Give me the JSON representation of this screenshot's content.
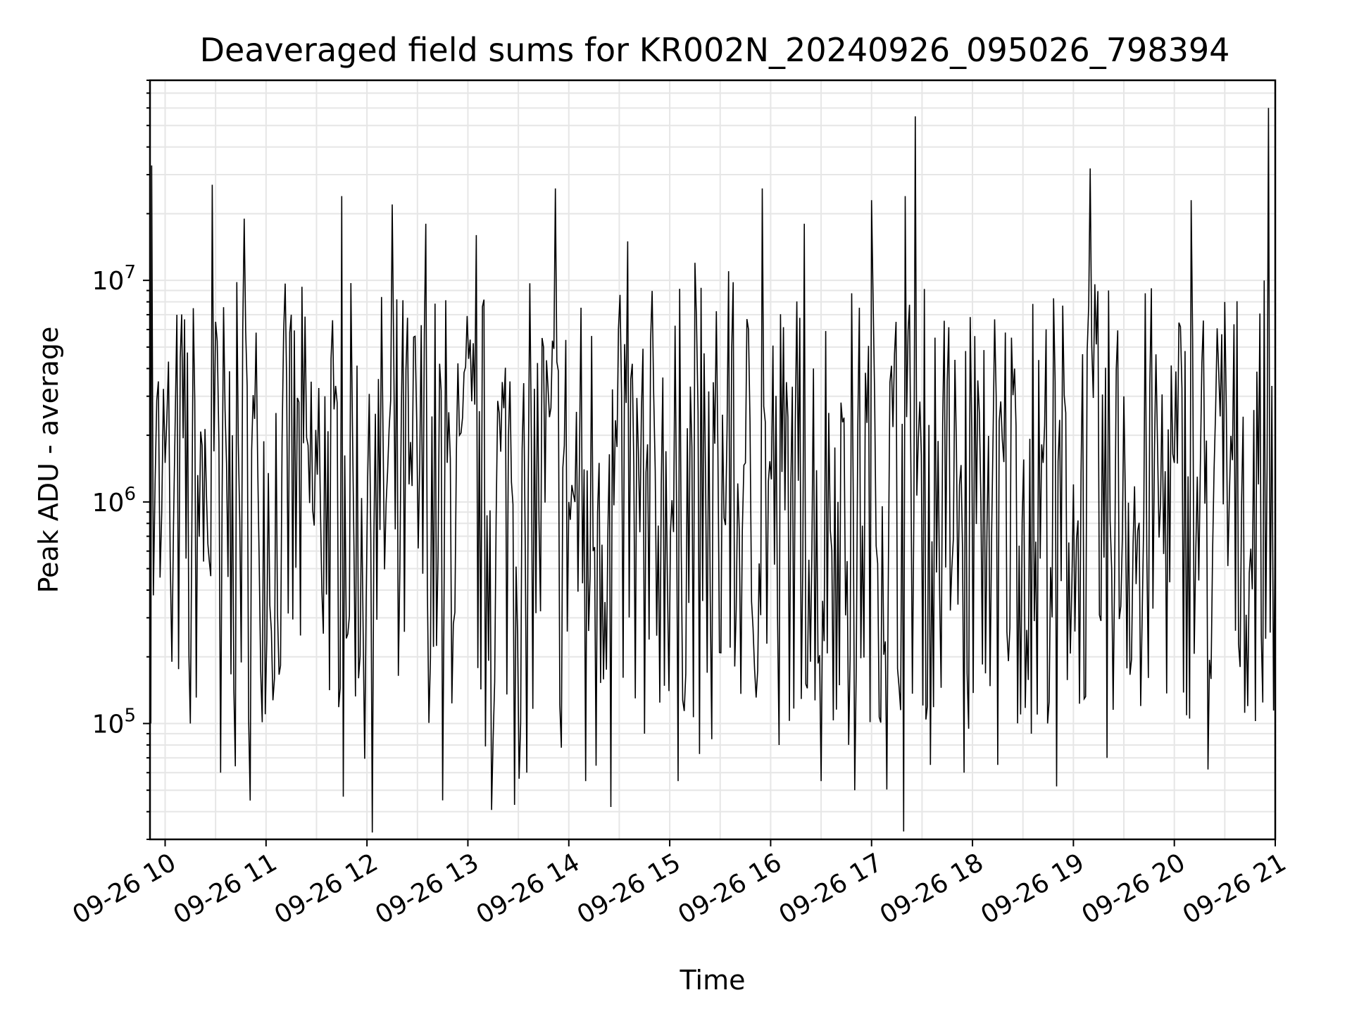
{
  "chart_data": {
    "type": "line",
    "title": "Deaveraged field sums for KR002N_20240926_095026_798394",
    "xlabel": "Time",
    "ylabel": "Peak ADU - average",
    "x_range": [
      "2024-09-26 09:51",
      "2024-09-26 21:00"
    ],
    "y_scale": "log",
    "ylim": [
      30000,
      80000000
    ],
    "grid": true,
    "line_color": "#000000",
    "grid_color": "#e6e6e6",
    "x_ticks": [
      {
        "t": "2024-09-26 10:00",
        "label": "09-26 10"
      },
      {
        "t": "2024-09-26 11:00",
        "label": "09-26 11"
      },
      {
        "t": "2024-09-26 12:00",
        "label": "09-26 12"
      },
      {
        "t": "2024-09-26 13:00",
        "label": "09-26 13"
      },
      {
        "t": "2024-09-26 14:00",
        "label": "09-26 14"
      },
      {
        "t": "2024-09-26 15:00",
        "label": "09-26 15"
      },
      {
        "t": "2024-09-26 16:00",
        "label": "09-26 16"
      },
      {
        "t": "2024-09-26 17:00",
        "label": "09-26 17"
      },
      {
        "t": "2024-09-26 18:00",
        "label": "09-26 18"
      },
      {
        "t": "2024-09-26 19:00",
        "label": "09-26 19"
      },
      {
        "t": "2024-09-26 20:00",
        "label": "09-26 20"
      },
      {
        "t": "2024-09-26 21:00",
        "label": "09-26 21"
      }
    ],
    "y_ticks": [
      {
        "value": 100000,
        "base": "10",
        "exp": "5"
      },
      {
        "value": 1000000,
        "base": "10",
        "exp": "6"
      },
      {
        "value": 10000000,
        "base": "10",
        "exp": "7"
      }
    ],
    "series": [
      {
        "x": [
          "2024-09-26 09:51",
          "2024-09-26 09:52",
          "2024-09-26 09:54",
          "2024-09-26 09:56",
          "2024-09-26 09:58",
          "2024-09-26 10:00",
          "2024-09-26 10:04",
          "2024-09-26 10:09",
          "2024-09-26 10:15",
          "2024-09-26 10:22",
          "2024-09-26 10:28",
          "2024-09-26 10:33",
          "2024-09-26 10:40",
          "2024-09-26 10:47",
          "2024-09-26 10:55",
          "2024-09-26 11:05",
          "2024-09-26 11:15",
          "2024-09-26 11:25",
          "2024-09-26 11:35",
          "2024-09-26 11:45",
          "2024-09-26 11:55",
          "2024-09-26 12:05",
          "2024-09-26 12:15",
          "2024-09-26 12:25",
          "2024-09-26 12:35",
          "2024-09-26 12:45",
          "2024-09-26 12:55",
          "2024-09-26 13:05",
          "2024-09-26 13:15",
          "2024-09-26 13:25",
          "2024-09-26 13:35",
          "2024-09-26 13:45",
          "2024-09-26 13:52",
          "2024-09-26 14:00",
          "2024-09-26 14:10",
          "2024-09-26 14:18",
          "2024-09-26 14:25",
          "2024-09-26 14:35",
          "2024-09-26 14:45",
          "2024-09-26 14:55",
          "2024-09-26 15:05",
          "2024-09-26 15:15",
          "2024-09-26 15:25",
          "2024-09-26 15:35",
          "2024-09-26 15:45",
          "2024-09-26 15:55",
          "2024-09-26 16:05",
          "2024-09-26 16:12",
          "2024-09-26 16:20",
          "2024-09-26 16:30",
          "2024-09-26 16:40",
          "2024-09-26 16:50",
          "2024-09-26 17:00",
          "2024-09-26 17:10",
          "2024-09-26 17:20",
          "2024-09-26 17:26",
          "2024-09-26 17:35",
          "2024-09-26 17:45",
          "2024-09-26 17:55",
          "2024-09-26 18:05",
          "2024-09-26 18:15",
          "2024-09-26 18:25",
          "2024-09-26 18:35",
          "2024-09-26 18:42",
          "2024-09-26 18:50",
          "2024-09-26 19:00",
          "2024-09-26 19:10",
          "2024-09-26 19:20",
          "2024-09-26 19:30",
          "2024-09-26 19:40",
          "2024-09-26 19:50",
          "2024-09-26 20:00",
          "2024-09-26 20:10",
          "2024-09-26 20:20",
          "2024-09-26 20:30",
          "2024-09-26 20:40",
          "2024-09-26 20:50",
          "2024-09-26 20:56",
          "2024-09-26 21:00"
        ],
        "y": [
          2500000,
          33000000,
          1200000,
          3500000,
          900000,
          1500000,
          190000,
          4500000,
          100000,
          1800000,
          27000000,
          60000,
          2000000,
          19000000,
          1500000,
          160000,
          7000000,
          1800000,
          3000000,
          24000000,
          160000,
          2500000,
          22000000,
          1200000,
          18000000,
          45000,
          2000000,
          16000000,
          85000,
          3500000,
          60000,
          5000000,
          26000000,
          1000000,
          55000,
          1500000,
          42000,
          15000000,
          90000,
          1200000,
          55000,
          12000000,
          85000,
          11000000,
          1500000,
          26000000,
          80000,
          1200000,
          18000000,
          55000,
          1000000,
          50000,
          23000000,
          500000,
          24000000,
          55000000,
          65000,
          3500000,
          60000,
          1000000,
          65000,
          4000000,
          90000,
          1500000,
          52000,
          1200000,
          32000000,
          70000,
          3000000,
          120000,
          1800000,
          1500000,
          23000000,
          62000,
          8000000,
          1000000,
          1200000,
          60000000,
          800000
        ]
      }
    ]
  }
}
